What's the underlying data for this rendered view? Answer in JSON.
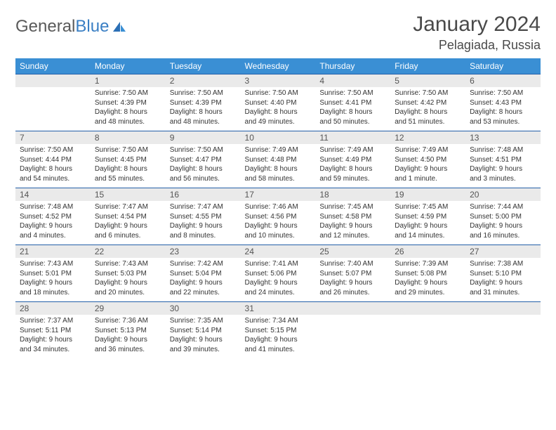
{
  "logo": {
    "text1": "General",
    "text2": "Blue"
  },
  "title": "January 2024",
  "location": "Pelagiada, Russia",
  "colors": {
    "header_bg": "#3a8fd4",
    "header_text": "#ffffff",
    "daynum_bg": "#eaeaea",
    "daynum_border": "#2460a8",
    "body_text": "#333333",
    "title_text": "#4a4a4a",
    "logo_gray": "#5a5a5a",
    "logo_blue": "#3a7fc4"
  },
  "weekdays": [
    "Sunday",
    "Monday",
    "Tuesday",
    "Wednesday",
    "Thursday",
    "Friday",
    "Saturday"
  ],
  "weeks": [
    {
      "nums": [
        "",
        "1",
        "2",
        "3",
        "4",
        "5",
        "6"
      ],
      "cells": [
        {},
        {
          "sunrise": "Sunrise: 7:50 AM",
          "sunset": "Sunset: 4:39 PM",
          "day1": "Daylight: 8 hours",
          "day2": "and 48 minutes."
        },
        {
          "sunrise": "Sunrise: 7:50 AM",
          "sunset": "Sunset: 4:39 PM",
          "day1": "Daylight: 8 hours",
          "day2": "and 48 minutes."
        },
        {
          "sunrise": "Sunrise: 7:50 AM",
          "sunset": "Sunset: 4:40 PM",
          "day1": "Daylight: 8 hours",
          "day2": "and 49 minutes."
        },
        {
          "sunrise": "Sunrise: 7:50 AM",
          "sunset": "Sunset: 4:41 PM",
          "day1": "Daylight: 8 hours",
          "day2": "and 50 minutes."
        },
        {
          "sunrise": "Sunrise: 7:50 AM",
          "sunset": "Sunset: 4:42 PM",
          "day1": "Daylight: 8 hours",
          "day2": "and 51 minutes."
        },
        {
          "sunrise": "Sunrise: 7:50 AM",
          "sunset": "Sunset: 4:43 PM",
          "day1": "Daylight: 8 hours",
          "day2": "and 53 minutes."
        }
      ]
    },
    {
      "nums": [
        "7",
        "8",
        "9",
        "10",
        "11",
        "12",
        "13"
      ],
      "cells": [
        {
          "sunrise": "Sunrise: 7:50 AM",
          "sunset": "Sunset: 4:44 PM",
          "day1": "Daylight: 8 hours",
          "day2": "and 54 minutes."
        },
        {
          "sunrise": "Sunrise: 7:50 AM",
          "sunset": "Sunset: 4:45 PM",
          "day1": "Daylight: 8 hours",
          "day2": "and 55 minutes."
        },
        {
          "sunrise": "Sunrise: 7:50 AM",
          "sunset": "Sunset: 4:47 PM",
          "day1": "Daylight: 8 hours",
          "day2": "and 56 minutes."
        },
        {
          "sunrise": "Sunrise: 7:49 AM",
          "sunset": "Sunset: 4:48 PM",
          "day1": "Daylight: 8 hours",
          "day2": "and 58 minutes."
        },
        {
          "sunrise": "Sunrise: 7:49 AM",
          "sunset": "Sunset: 4:49 PM",
          "day1": "Daylight: 8 hours",
          "day2": "and 59 minutes."
        },
        {
          "sunrise": "Sunrise: 7:49 AM",
          "sunset": "Sunset: 4:50 PM",
          "day1": "Daylight: 9 hours",
          "day2": "and 1 minute."
        },
        {
          "sunrise": "Sunrise: 7:48 AM",
          "sunset": "Sunset: 4:51 PM",
          "day1": "Daylight: 9 hours",
          "day2": "and 3 minutes."
        }
      ]
    },
    {
      "nums": [
        "14",
        "15",
        "16",
        "17",
        "18",
        "19",
        "20"
      ],
      "cells": [
        {
          "sunrise": "Sunrise: 7:48 AM",
          "sunset": "Sunset: 4:52 PM",
          "day1": "Daylight: 9 hours",
          "day2": "and 4 minutes."
        },
        {
          "sunrise": "Sunrise: 7:47 AM",
          "sunset": "Sunset: 4:54 PM",
          "day1": "Daylight: 9 hours",
          "day2": "and 6 minutes."
        },
        {
          "sunrise": "Sunrise: 7:47 AM",
          "sunset": "Sunset: 4:55 PM",
          "day1": "Daylight: 9 hours",
          "day2": "and 8 minutes."
        },
        {
          "sunrise": "Sunrise: 7:46 AM",
          "sunset": "Sunset: 4:56 PM",
          "day1": "Daylight: 9 hours",
          "day2": "and 10 minutes."
        },
        {
          "sunrise": "Sunrise: 7:45 AM",
          "sunset": "Sunset: 4:58 PM",
          "day1": "Daylight: 9 hours",
          "day2": "and 12 minutes."
        },
        {
          "sunrise": "Sunrise: 7:45 AM",
          "sunset": "Sunset: 4:59 PM",
          "day1": "Daylight: 9 hours",
          "day2": "and 14 minutes."
        },
        {
          "sunrise": "Sunrise: 7:44 AM",
          "sunset": "Sunset: 5:00 PM",
          "day1": "Daylight: 9 hours",
          "day2": "and 16 minutes."
        }
      ]
    },
    {
      "nums": [
        "21",
        "22",
        "23",
        "24",
        "25",
        "26",
        "27"
      ],
      "cells": [
        {
          "sunrise": "Sunrise: 7:43 AM",
          "sunset": "Sunset: 5:01 PM",
          "day1": "Daylight: 9 hours",
          "day2": "and 18 minutes."
        },
        {
          "sunrise": "Sunrise: 7:43 AM",
          "sunset": "Sunset: 5:03 PM",
          "day1": "Daylight: 9 hours",
          "day2": "and 20 minutes."
        },
        {
          "sunrise": "Sunrise: 7:42 AM",
          "sunset": "Sunset: 5:04 PM",
          "day1": "Daylight: 9 hours",
          "day2": "and 22 minutes."
        },
        {
          "sunrise": "Sunrise: 7:41 AM",
          "sunset": "Sunset: 5:06 PM",
          "day1": "Daylight: 9 hours",
          "day2": "and 24 minutes."
        },
        {
          "sunrise": "Sunrise: 7:40 AM",
          "sunset": "Sunset: 5:07 PM",
          "day1": "Daylight: 9 hours",
          "day2": "and 26 minutes."
        },
        {
          "sunrise": "Sunrise: 7:39 AM",
          "sunset": "Sunset: 5:08 PM",
          "day1": "Daylight: 9 hours",
          "day2": "and 29 minutes."
        },
        {
          "sunrise": "Sunrise: 7:38 AM",
          "sunset": "Sunset: 5:10 PM",
          "day1": "Daylight: 9 hours",
          "day2": "and 31 minutes."
        }
      ]
    },
    {
      "nums": [
        "28",
        "29",
        "30",
        "31",
        "",
        "",
        ""
      ],
      "cells": [
        {
          "sunrise": "Sunrise: 7:37 AM",
          "sunset": "Sunset: 5:11 PM",
          "day1": "Daylight: 9 hours",
          "day2": "and 34 minutes."
        },
        {
          "sunrise": "Sunrise: 7:36 AM",
          "sunset": "Sunset: 5:13 PM",
          "day1": "Daylight: 9 hours",
          "day2": "and 36 minutes."
        },
        {
          "sunrise": "Sunrise: 7:35 AM",
          "sunset": "Sunset: 5:14 PM",
          "day1": "Daylight: 9 hours",
          "day2": "and 39 minutes."
        },
        {
          "sunrise": "Sunrise: 7:34 AM",
          "sunset": "Sunset: 5:15 PM",
          "day1": "Daylight: 9 hours",
          "day2": "and 41 minutes."
        },
        {},
        {},
        {}
      ]
    }
  ]
}
